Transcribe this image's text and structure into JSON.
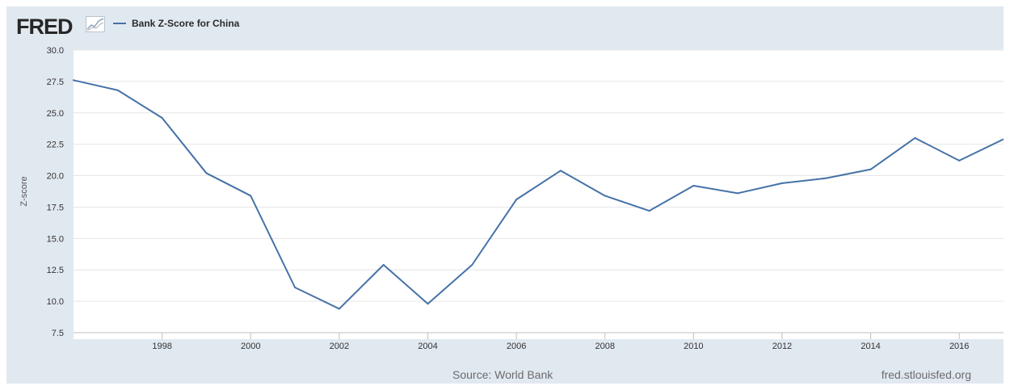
{
  "header": {
    "logo_text": "FRED",
    "logo_icon": "line-chart-icon",
    "legend_label": "Bank Z-Score for China",
    "series_color": "#4572a7"
  },
  "footer": {
    "source": "Source: World Bank",
    "site": "fred.stlouisfed.org"
  },
  "chart_data": {
    "type": "line",
    "title": "",
    "xlabel": "",
    "ylabel": "Z-score",
    "xlim": [
      1996,
      2017
    ],
    "ylim": [
      7.5,
      30.0
    ],
    "y_ticks": [
      "7.5",
      "10.0",
      "12.5",
      "15.0",
      "17.5",
      "20.0",
      "22.5",
      "25.0",
      "27.5",
      "30.0"
    ],
    "x_ticks": [
      "1998",
      "2000",
      "2002",
      "2004",
      "2006",
      "2008",
      "2010",
      "2012",
      "2014",
      "2016"
    ],
    "grid": true,
    "legend": "top-left",
    "series": [
      {
        "name": "Bank Z-Score for China",
        "color": "#4572a7",
        "x": [
          1996,
          1997,
          1998,
          1999,
          2000,
          2001,
          2002,
          2003,
          2004,
          2005,
          2006,
          2007,
          2008,
          2009,
          2010,
          2011,
          2012,
          2013,
          2014,
          2015,
          2016,
          2017
        ],
        "values": [
          27.6,
          26.8,
          24.6,
          20.2,
          18.4,
          11.1,
          9.4,
          12.9,
          9.8,
          12.9,
          18.1,
          20.4,
          18.4,
          17.2,
          19.2,
          18.6,
          19.4,
          19.8,
          20.5,
          23.0,
          21.2,
          22.9
        ]
      }
    ]
  }
}
